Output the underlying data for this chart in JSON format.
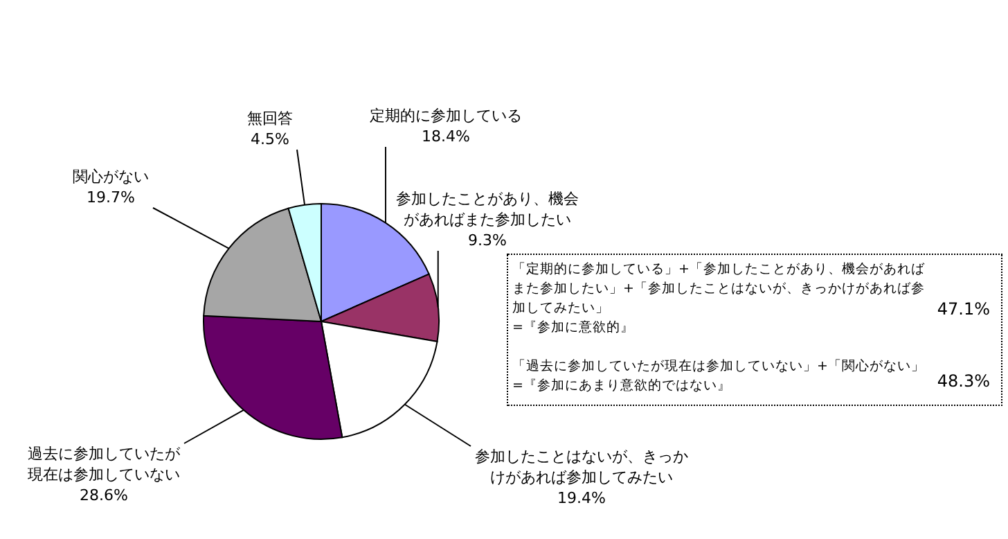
{
  "chart_data": {
    "type": "pie",
    "categories": [
      "定期的に参加している",
      "参加したことがあり、機会があればまた参加したい",
      "参加したことはないが、きっかけがあれば参加してみたい",
      "過去に参加していたが現在は参加していない",
      "関心がない",
      "無回答"
    ],
    "values": [
      18.4,
      9.3,
      19.4,
      28.6,
      19.7,
      4.5
    ],
    "colors": [
      "#9999ff",
      "#993366",
      "#ffffff",
      "#660066",
      "#a6a6a6",
      "#ccffff"
    ],
    "value_labels": [
      "18.4%",
      "9.3%",
      "19.4%",
      "28.6%",
      "19.7%",
      "4.5%"
    ],
    "annotations": [
      "「定期的に参加している」+「参加したことがあり、機会があればまた参加したい」+「参加したことはないが、きっかけがあれば参加してみたい」",
      "=『参加に意欲的』",
      "47.1%",
      "「過去に参加していたが現在は参加していない」+「関心がない」",
      "=『参加にあまり意欲的ではない』",
      "48.3%"
    ]
  }
}
